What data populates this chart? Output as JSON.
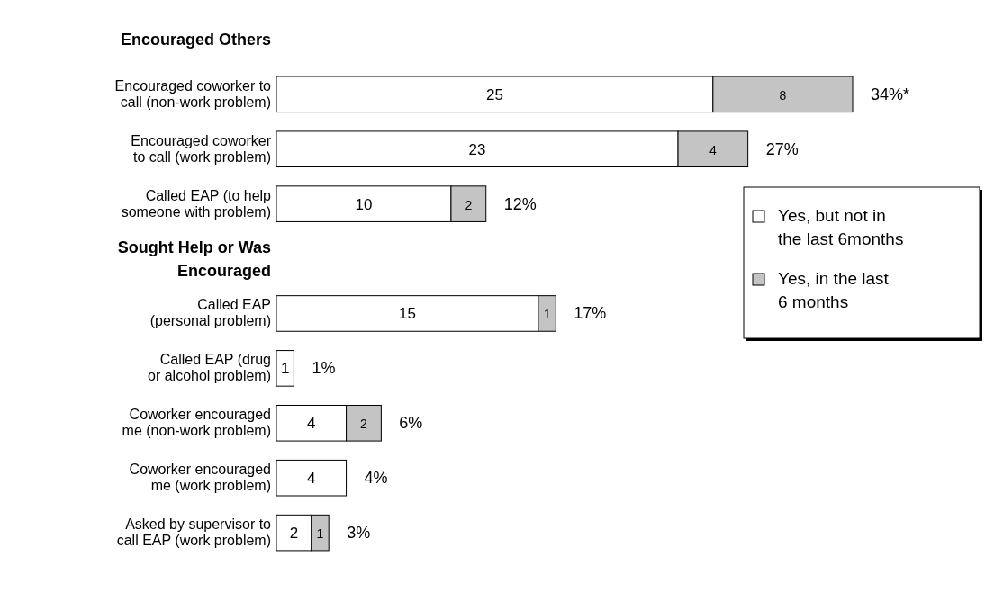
{
  "chart_data": {
    "type": "bar",
    "orientation": "horizontal",
    "stacked": true,
    "data_labels": true,
    "legend": "right",
    "categories": [
      "Encouraged Others",
      "Encouraged coworker to call (non-work problem)",
      "Encouraged coworker to call (work problem)",
      "Called EAP (to help someone with problem)",
      "Sought Help or Was Encouraged",
      "Called EAP (personal problem)",
      "Called EAP (drug or alcohol problem)",
      "Coworker encouraged me (non-work problem)",
      "Coworker encouraged me (work problem)",
      "Asked by supervisor to call EAP (work problem)"
    ],
    "series": [
      {
        "name": "Yes, but not in the last 6months",
        "color": "#ffffff",
        "values": [
          null,
          25,
          23,
          10,
          null,
          15,
          1,
          4,
          4,
          2
        ]
      },
      {
        "name": "Yes, in the last 6 months",
        "color": "#c4c4c4",
        "values": [
          null,
          8,
          4,
          2,
          null,
          1,
          null,
          2,
          null,
          1
        ]
      }
    ],
    "totals": [
      null,
      "34%*",
      "27%",
      "12%",
      null,
      "17%",
      "1%",
      "6%",
      "4%",
      "3%"
    ]
  }
}
